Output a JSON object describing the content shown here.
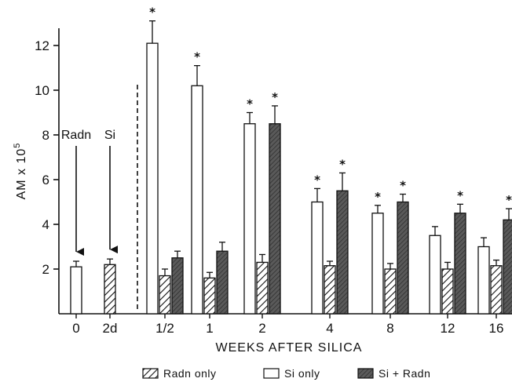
{
  "chart_data": {
    "type": "bar",
    "ylabel": "AM x 10",
    "ylabel_exponent": "5",
    "xlabel": "WEEKS AFTER SILICA",
    "ylim": [
      0,
      13
    ],
    "yticks": [
      2,
      4,
      6,
      8,
      10,
      12
    ],
    "baseline_groups": [
      {
        "label": "0",
        "series": "Radn only",
        "value": 2.1,
        "err": 0.25,
        "star": false,
        "bar_fill": "open",
        "annotation": "Radn"
      },
      {
        "label": "2d",
        "series": "Radn only",
        "value": 2.2,
        "err": 0.25,
        "star": false,
        "bar_fill": "hatched",
        "annotation": "Si"
      }
    ],
    "categories": [
      "1/2",
      "1",
      "2",
      "4",
      "8",
      "12",
      "16"
    ],
    "series": [
      {
        "name": "Si only",
        "values": [
          12.1,
          10.2,
          8.5,
          5.0,
          4.5,
          3.5,
          3.0
        ],
        "errors": [
          1.0,
          0.9,
          0.5,
          0.6,
          0.35,
          0.4,
          0.4
        ],
        "stars": [
          true,
          true,
          true,
          true,
          true,
          false,
          false
        ]
      },
      {
        "name": "Radn only",
        "values": [
          1.7,
          1.6,
          2.3,
          2.15,
          2.0,
          2.0,
          2.15
        ],
        "errors": [
          0.3,
          0.25,
          0.35,
          0.2,
          0.25,
          0.3,
          0.25
        ],
        "stars": [
          false,
          false,
          false,
          false,
          false,
          false,
          false
        ]
      },
      {
        "name": "Si + Radn",
        "values": [
          2.5,
          2.8,
          8.5,
          5.5,
          5.0,
          4.5,
          4.2
        ],
        "errors": [
          0.3,
          0.4,
          0.8,
          0.8,
          0.35,
          0.4,
          0.5
        ],
        "stars": [
          false,
          false,
          true,
          true,
          true,
          true,
          true
        ]
      }
    ],
    "legend": [
      "Radn only",
      "Si only",
      "Si + Radn"
    ],
    "legend_position": "bottom",
    "colors": {
      "axis": "#111111",
      "open": "#ffffff",
      "dark": "#4a4a4a",
      "hatch": "#111111"
    }
  }
}
